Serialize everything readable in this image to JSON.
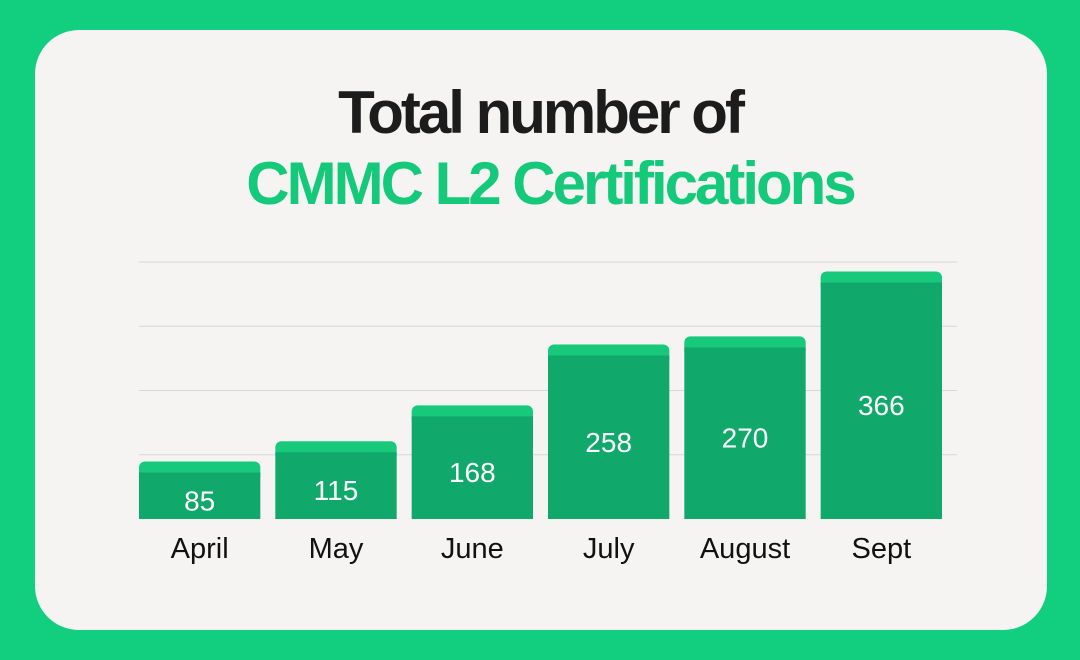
{
  "title": {
    "line1": "Total number of",
    "line2": "CMMC L2 Certifications"
  },
  "colors": {
    "background": "#12cf80",
    "card": "#f5f4f2",
    "title_dark": "#1c1c1c",
    "title_accent": "#15c97a",
    "bar_body": "#10a86b",
    "bar_cap": "#18c97c",
    "gridline": "#d6d6d6",
    "bar_label": "#ffffff",
    "axis_label": "#111111"
  },
  "chart_data": {
    "type": "bar",
    "title": "Total number of CMMC L2 Certifications",
    "categories": [
      "April",
      "May",
      "June",
      "July",
      "August",
      "Sept"
    ],
    "values": [
      85,
      115,
      168,
      258,
      270,
      366
    ],
    "xlabel": "",
    "ylabel": "",
    "ylim": [
      0,
      380
    ],
    "grid": true,
    "data_labels": true
  }
}
